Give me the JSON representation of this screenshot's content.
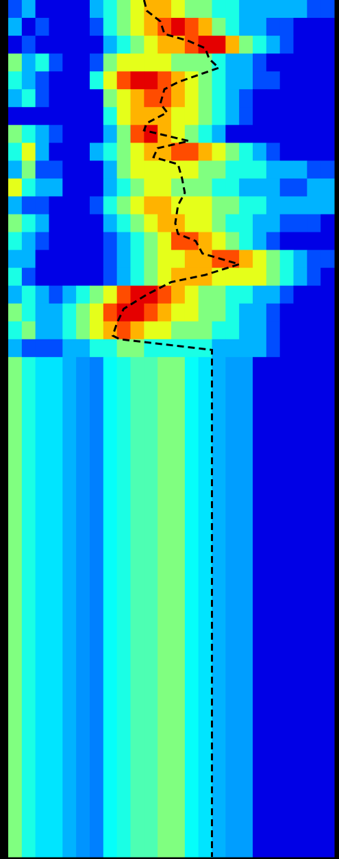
{
  "chart_data": {
    "type": "heatmap",
    "colormap": "jet",
    "vlim": [
      0,
      1
    ],
    "xlim": [
      0,
      24
    ],
    "ylim": [
      0,
      48
    ],
    "y_edges": [
      0,
      1,
      2,
      3,
      4,
      5,
      6,
      7,
      8,
      9,
      10,
      11,
      12,
      13,
      14,
      15,
      16,
      17,
      18,
      19,
      20,
      48
    ],
    "values": [
      [
        0.2,
        0.3,
        0.1,
        0.1,
        0.1,
        0.1,
        0.3,
        0.4,
        0.5,
        0.6,
        0.7,
        0.7,
        0.6,
        0.5,
        0.5,
        0.4,
        0.4,
        0.3,
        0.3,
        0.3,
        0.3,
        0.3,
        0.2,
        0.2
      ],
      [
        0.3,
        0.1,
        0.2,
        0.1,
        0.1,
        0.1,
        0.2,
        0.4,
        0.5,
        0.6,
        0.7,
        0.8,
        0.9,
        0.8,
        0.7,
        0.5,
        0.4,
        0.3,
        0.3,
        0.2,
        0.2,
        0.1,
        0.1,
        0.1
      ],
      [
        0.1,
        0.2,
        0.1,
        0.1,
        0.1,
        0.1,
        0.1,
        0.3,
        0.4,
        0.5,
        0.6,
        0.7,
        0.7,
        0.8,
        0.9,
        0.9,
        0.7,
        0.5,
        0.4,
        0.3,
        0.2,
        0.1,
        0.1,
        0.1
      ],
      [
        0.5,
        0.3,
        0.4,
        0.2,
        0.1,
        0.1,
        0.2,
        0.5,
        0.6,
        0.6,
        0.6,
        0.6,
        0.5,
        0.5,
        0.5,
        0.4,
        0.3,
        0.3,
        0.2,
        0.1,
        0.1,
        0.1,
        0.1,
        0.1
      ],
      [
        0.4,
        0.3,
        0.2,
        0.1,
        0.1,
        0.1,
        0.4,
        0.6,
        0.8,
        0.9,
        0.9,
        0.8,
        0.7,
        0.6,
        0.5,
        0.4,
        0.3,
        0.3,
        0.2,
        0.2,
        0.1,
        0.1,
        0.1,
        0.1
      ],
      [
        0.3,
        0.4,
        0.2,
        0.1,
        0.1,
        0.1,
        0.1,
        0.5,
        0.6,
        0.7,
        0.8,
        0.8,
        0.7,
        0.6,
        0.5,
        0.4,
        0.3,
        0.2,
        0.1,
        0.1,
        0.1,
        0.1,
        0.1,
        0.1
      ],
      [
        0.1,
        0.1,
        0.1,
        0.1,
        0.1,
        0.1,
        0.1,
        0.4,
        0.6,
        0.7,
        0.7,
        0.7,
        0.6,
        0.6,
        0.5,
        0.4,
        0.3,
        0.2,
        0.1,
        0.1,
        0.1,
        0.1,
        0.1,
        0.1
      ],
      [
        0.5,
        0.4,
        0.3,
        0.2,
        0.1,
        0.1,
        0.1,
        0.3,
        0.5,
        0.8,
        0.9,
        0.7,
        0.6,
        0.5,
        0.4,
        0.3,
        0.1,
        0.1,
        0.1,
        0.1,
        0.1,
        0.1,
        0.1,
        0.1
      ],
      [
        0.4,
        0.6,
        0.3,
        0.1,
        0.1,
        0.1,
        0.3,
        0.4,
        0.5,
        0.6,
        0.7,
        0.7,
        0.8,
        0.8,
        0.7,
        0.6,
        0.5,
        0.4,
        0.3,
        0.2,
        0.1,
        0.1,
        0.1,
        0.1
      ],
      [
        0.3,
        0.5,
        0.2,
        0.2,
        0.1,
        0.1,
        0.1,
        0.3,
        0.5,
        0.6,
        0.6,
        0.6,
        0.6,
        0.6,
        0.5,
        0.5,
        0.4,
        0.4,
        0.4,
        0.3,
        0.3,
        0.3,
        0.2,
        0.2
      ],
      [
        0.6,
        0.4,
        0.3,
        0.3,
        0.1,
        0.1,
        0.1,
        0.3,
        0.4,
        0.5,
        0.6,
        0.6,
        0.5,
        0.5,
        0.5,
        0.4,
        0.4,
        0.3,
        0.3,
        0.3,
        0.2,
        0.2,
        0.3,
        0.3
      ],
      [
        0.3,
        0.2,
        0.2,
        0.1,
        0.1,
        0.1,
        0.2,
        0.4,
        0.5,
        0.6,
        0.7,
        0.7,
        0.6,
        0.6,
        0.6,
        0.5,
        0.5,
        0.4,
        0.4,
        0.3,
        0.3,
        0.3,
        0.3,
        0.3
      ],
      [
        0.5,
        0.4,
        0.3,
        0.1,
        0.1,
        0.1,
        0.1,
        0.3,
        0.4,
        0.5,
        0.6,
        0.7,
        0.7,
        0.6,
        0.6,
        0.5,
        0.4,
        0.4,
        0.3,
        0.3,
        0.2,
        0.2,
        0.2,
        0.1
      ],
      [
        0.4,
        0.3,
        0.2,
        0.1,
        0.1,
        0.1,
        0.1,
        0.2,
        0.3,
        0.4,
        0.5,
        0.6,
        0.8,
        0.8,
        0.7,
        0.6,
        0.5,
        0.4,
        0.3,
        0.2,
        0.1,
        0.1,
        0.1,
        0.1
      ],
      [
        0.3,
        0.3,
        0.1,
        0.1,
        0.1,
        0.1,
        0.1,
        0.2,
        0.3,
        0.4,
        0.5,
        0.6,
        0.6,
        0.7,
        0.7,
        0.8,
        0.8,
        0.7,
        0.6,
        0.5,
        0.4,
        0.3,
        0.2,
        0.2
      ],
      [
        0.4,
        0.2,
        0.1,
        0.1,
        0.1,
        0.1,
        0.1,
        0.2,
        0.3,
        0.4,
        0.5,
        0.6,
        0.7,
        0.7,
        0.7,
        0.6,
        0.6,
        0.6,
        0.6,
        0.5,
        0.4,
        0.3,
        0.2,
        0.1
      ],
      [
        0.3,
        0.4,
        0.3,
        0.2,
        0.3,
        0.4,
        0.5,
        0.6,
        0.8,
        0.9,
        0.9,
        0.8,
        0.7,
        0.6,
        0.5,
        0.5,
        0.4,
        0.4,
        0.3,
        0.3,
        0.2,
        0.1,
        0.1,
        0.1
      ],
      [
        0.5,
        0.4,
        0.3,
        0.3,
        0.4,
        0.5,
        0.6,
        0.8,
        0.9,
        0.9,
        0.8,
        0.7,
        0.6,
        0.6,
        0.5,
        0.5,
        0.4,
        0.3,
        0.3,
        0.2,
        0.1,
        0.1,
        0.1,
        0.1
      ],
      [
        0.4,
        0.5,
        0.3,
        0.3,
        0.4,
        0.5,
        0.6,
        0.7,
        0.8,
        0.7,
        0.6,
        0.6,
        0.5,
        0.5,
        0.5,
        0.4,
        0.4,
        0.3,
        0.3,
        0.2,
        0.1,
        0.1,
        0.1,
        0.1
      ],
      [
        0.3,
        0.2,
        0.2,
        0.2,
        0.3,
        0.3,
        0.4,
        0.4,
        0.5,
        0.5,
        0.4,
        0.4,
        0.4,
        0.4,
        0.4,
        0.3,
        0.3,
        0.3,
        0.3,
        0.2,
        0.1,
        0.1,
        0.1,
        0.1
      ],
      [
        0.5,
        0.4,
        0.35,
        0.35,
        0.3,
        0.27,
        0.25,
        0.38,
        0.4,
        0.45,
        0.45,
        0.5,
        0.5,
        0.38,
        0.35,
        0.3,
        0.28,
        0.28,
        0.1,
        0.1,
        0.1,
        0.1,
        0.1,
        0.1
      ]
    ],
    "series": [
      {
        "color": "#000000",
        "x": [
          10.0,
          10.2,
          11.2,
          11.5,
          13.3,
          14.5,
          14.8,
          15.5,
          12.5,
          11.5,
          11.2,
          11.7,
          10.2,
          10.0,
          13.3,
          11.0,
          10.7,
          12.5,
          12.8,
          13.0,
          12.5,
          12.3,
          12.5,
          13.8,
          14.3,
          17.0,
          14.5,
          12.0,
          10.2,
          8.5,
          8.0,
          7.7,
          8.2,
          15.0,
          15.0,
          15.0
        ],
        "y": [
          0,
          0.6,
          1.2,
          1.9,
          2.3,
          2.7,
          3.3,
          3.8,
          4.6,
          5.0,
          5.8,
          6.3,
          6.9,
          7.3,
          7.9,
          8.3,
          8.8,
          9.2,
          10.0,
          10.8,
          11.5,
          12.5,
          13.1,
          13.5,
          14.2,
          14.8,
          15.4,
          15.8,
          16.5,
          17.3,
          18.1,
          18.8,
          19.0,
          19.6,
          20.4,
          48
        ]
      }
    ]
  }
}
